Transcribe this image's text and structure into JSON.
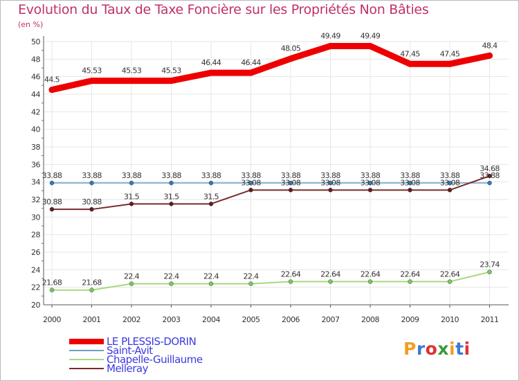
{
  "title": "Evolution du Taux de Taxe Foncière sur les Propriétés Non Bâties",
  "subtitle": "(en %)",
  "brand": {
    "letters": [
      "P",
      "r",
      "o",
      "x",
      "i",
      "t",
      "i"
    ],
    "colors": [
      "#f0a020",
      "#3a7ad8",
      "#e03030",
      "#3a9a3a",
      "#f0a020",
      "#3a7ad8",
      "#e03030"
    ]
  },
  "chart_data": {
    "type": "line",
    "title": "Evolution du Taux de Taxe Foncière sur les Propriétés Non Bâties",
    "ylabel": "(en %)",
    "xlabel": "",
    "ylim": [
      20,
      50
    ],
    "yticks": [
      20,
      22,
      24,
      26,
      28,
      30,
      32,
      34,
      36,
      38,
      40,
      42,
      44,
      46,
      48,
      50
    ],
    "categories": [
      "2000",
      "2001",
      "2002",
      "2003",
      "2004",
      "2005",
      "2006",
      "2007",
      "2008",
      "2009",
      "2010",
      "2011"
    ],
    "grid": true,
    "legend": "bottom-left",
    "series": [
      {
        "name": "LE PLESSIS-DORIN",
        "color": "#ee0000",
        "lineWidth": 9,
        "marker": "#ee0000",
        "values": [
          44.5,
          45.53,
          45.53,
          45.53,
          46.44,
          46.44,
          48.05,
          49.49,
          49.49,
          47.45,
          47.45,
          48.4
        ],
        "labels": [
          "44.5",
          "45.53",
          "45.53",
          "45.53",
          "46.44",
          "46.44",
          "48.05",
          "49.49",
          "49.49",
          "47.45",
          "47.45",
          "48.4"
        ]
      },
      {
        "name": "Saint-Avit",
        "color": "#6a9fc8",
        "lineWidth": 1.5,
        "marker": "#3a78b0",
        "values": [
          33.88,
          33.88,
          33.88,
          33.88,
          33.88,
          33.88,
          33.88,
          33.88,
          33.88,
          33.88,
          33.88,
          33.88
        ],
        "labels": [
          "33.88",
          "33.88",
          "33.88",
          "33.88",
          "33.88",
          "33.88",
          "33.88",
          "33.88",
          "33.88",
          "33.88",
          "33.88",
          "33.88"
        ]
      },
      {
        "name": "Chapelle-Guillaume",
        "color": "#a8d880",
        "lineWidth": 2,
        "marker": "#7ec850",
        "values": [
          21.68,
          21.68,
          22.4,
          22.4,
          22.4,
          22.4,
          22.64,
          22.64,
          22.64,
          22.64,
          22.64,
          23.74
        ],
        "labels": [
          "21.68",
          "21.68",
          "22.4",
          "22.4",
          "22.4",
          "22.4",
          "22.64",
          "22.64",
          "22.64",
          "22.64",
          "22.64",
          "23.74"
        ]
      },
      {
        "name": "Melleray",
        "color": "#7a2a2a",
        "lineWidth": 2,
        "marker": "#6a1818",
        "values": [
          30.88,
          30.88,
          31.5,
          31.5,
          31.5,
          33.08,
          33.08,
          33.08,
          33.08,
          33.08,
          33.08,
          34.68
        ],
        "labels": [
          "30.88",
          "30.88",
          "31.5",
          "31.5",
          "31.5",
          "33.08",
          "33.08",
          "33.08",
          "33.08",
          "33.08",
          "33.08",
          "34.68"
        ]
      }
    ]
  }
}
